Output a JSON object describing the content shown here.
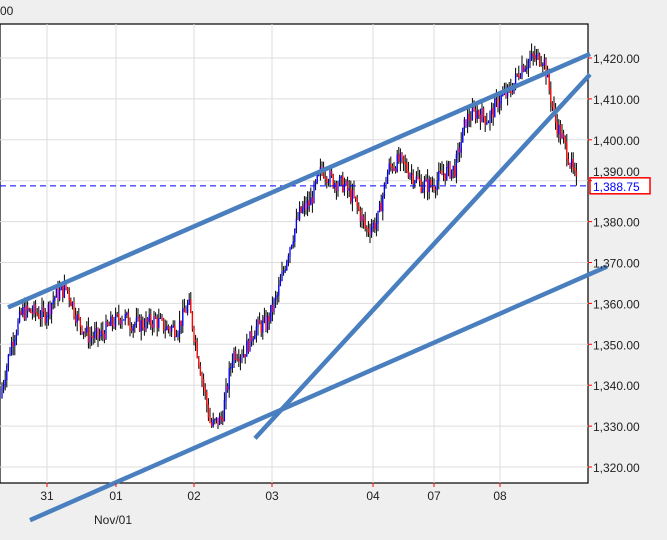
{
  "header": {
    "cut_text": "00"
  },
  "chart_data": {
    "type": "candlestick",
    "title": "",
    "xlabel": "",
    "ylabel": "",
    "ylim": [
      1316,
      1428
    ],
    "grid": true,
    "y_ticks": [
      "1,320.00",
      "1,330.00",
      "1,340.00",
      "1,350.00",
      "1,360.00",
      "1,370.00",
      "1,380.00",
      "1,390.00",
      "1,400.00",
      "1,410.00",
      "1,420.00"
    ],
    "x_ticks": [
      "31",
      "01",
      "02",
      "03",
      "04",
      "07",
      "08"
    ],
    "x_sublabel": "Nov/01",
    "price_path": [
      1337,
      1350,
      1358,
      1358,
      1357,
      1362,
      1364,
      1356,
      1352,
      1352,
      1355,
      1357,
      1355,
      1355,
      1356,
      1354,
      1354,
      1360,
      1345,
      1330,
      1332,
      1348,
      1348,
      1354,
      1355,
      1362,
      1373,
      1382,
      1385,
      1393,
      1390,
      1389,
      1385,
      1378,
      1380,
      1393,
      1395,
      1392,
      1389,
      1389,
      1392,
      1393,
      1405,
      1407,
      1405,
      1410,
      1412,
      1418,
      1420,
      1420,
      1405,
      1398,
      1389
    ],
    "last_price": 1388.75,
    "last_price_label": "1,388.75",
    "trendlines": [
      {
        "from": 1359,
        "to": 1421
      },
      {
        "from": 1327,
        "to": 1416
      },
      {
        "from": 1307,
        "to": 1369
      }
    ],
    "colors": {
      "up": "#0000ff",
      "down": "#ff0000",
      "trendline": "#4a7fbf",
      "last_price_line": "#0000ff",
      "grid": "#dddddd"
    }
  }
}
